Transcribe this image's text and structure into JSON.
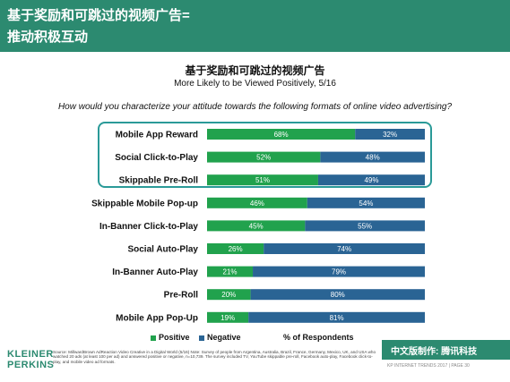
{
  "header": {
    "title_line1": "基于奖励和可跳过的视频广告=",
    "title_line2": "推动积极互动"
  },
  "chart_title": "基于奖励和可跳过的视频广告",
  "chart_subtitle": "More Likely to be Viewed Positively, 5/16",
  "question": "How would you characterize your attitude towards the following formats of online video advertising?",
  "colors": {
    "positive": "#21a24d",
    "negative": "#2a6494",
    "brand": "#2c8a70",
    "highlight": "#2a9a98"
  },
  "chart_data": {
    "type": "bar",
    "orientation": "horizontal",
    "stacked": true,
    "categories": [
      "Mobile App Reward",
      "Social Click-to-Play",
      "Skippable Pre-Roll",
      "Skippable Mobile Pop-up",
      "In-Banner Click-to-Play",
      "Social Auto-Play",
      "In-Banner Auto-Play",
      "Pre-Roll",
      "Mobile App Pop-Up"
    ],
    "series": [
      {
        "name": "Positive",
        "values": [
          68,
          52,
          51,
          46,
          45,
          26,
          21,
          20,
          19
        ],
        "labels": [
          "68%",
          "52%",
          "51%",
          "46%",
          "45%",
          "26%",
          "21%",
          "20%",
          "19%"
        ]
      },
      {
        "name": "Negative",
        "values": [
          32,
          48,
          49,
          54,
          55,
          74,
          79,
          80,
          81
        ],
        "labels": [
          "32%",
          "48%",
          "49%",
          "54%",
          "55%",
          "74%",
          "79%",
          "80%",
          "81%"
        ]
      }
    ],
    "xlim": [
      0,
      100
    ],
    "xlabel": "% of Respondents",
    "legend_position": "bottom"
  },
  "legend": {
    "positive": "Positive",
    "negative": "Negative",
    "axis_label": "% of Respondents"
  },
  "footer": {
    "logo_line1": "KLEINER",
    "logo_line2": "PERKINS",
    "source": "Source: MillwardBrown AdReaction Video Creative in a Digital World (5/16)\nNote: Survey of people from Argentina, Australia, Brazil, France, Germany, Mexico, UK, and USA who watched 20 ads (at least 100 per ad) and answered positive or negative, n=10,739. The survey included TV, YouTube skippable pre-roll, Facebook auto-play, Facebook click-to-play, and mobile video ad formats.",
    "brand": "中文版制作: 腾讯科技",
    "page": "KP INTERNET TRENDS 2017 | PAGE 30"
  }
}
